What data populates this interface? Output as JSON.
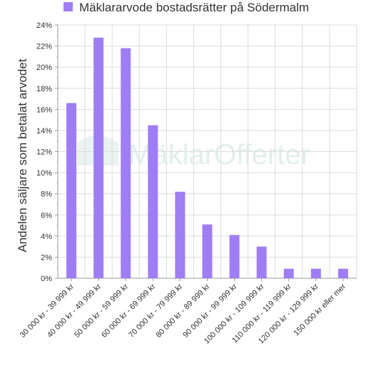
{
  "chart_data": {
    "type": "bar",
    "title": "",
    "legend": {
      "position": "top",
      "series_name": "Mäklararvode bostadsrätter på Södermalm"
    },
    "xlabel": "",
    "ylabel": "Andelen säljare som betalat arvodet",
    "ylim": [
      0,
      24
    ],
    "yticks": [
      "0%",
      "2%",
      "4%",
      "6%",
      "8%",
      "10%",
      "12%",
      "14%",
      "16%",
      "18%",
      "20%",
      "22%",
      "24%"
    ],
    "grid": true,
    "bar_color": "#9f7ef5",
    "categories": [
      "30 000 kr - 39 999 kr",
      "40 000 kr - 49 999 kr",
      "50 000 kr - 59 999 kr",
      "60 000 kr - 69 999 kr",
      "70 000 kr - 79 999 kr",
      "80 000 kr - 89 999 kr",
      "90 000 kr - 99 999 kr",
      "100 000 kr - 109 999 kr",
      "110 000 kr - 119 999 kr",
      "120 000 kr - 129 999 kr",
      "150 000 kr eller mer"
    ],
    "series": [
      {
        "name": "Mäklararvode bostadsrätter på Södermalm",
        "values": [
          16.6,
          22.8,
          21.8,
          14.5,
          8.2,
          5.1,
          4.1,
          3.0,
          0.9,
          0.9,
          0.9
        ]
      }
    ],
    "watermark": "MäklarOfferter"
  }
}
